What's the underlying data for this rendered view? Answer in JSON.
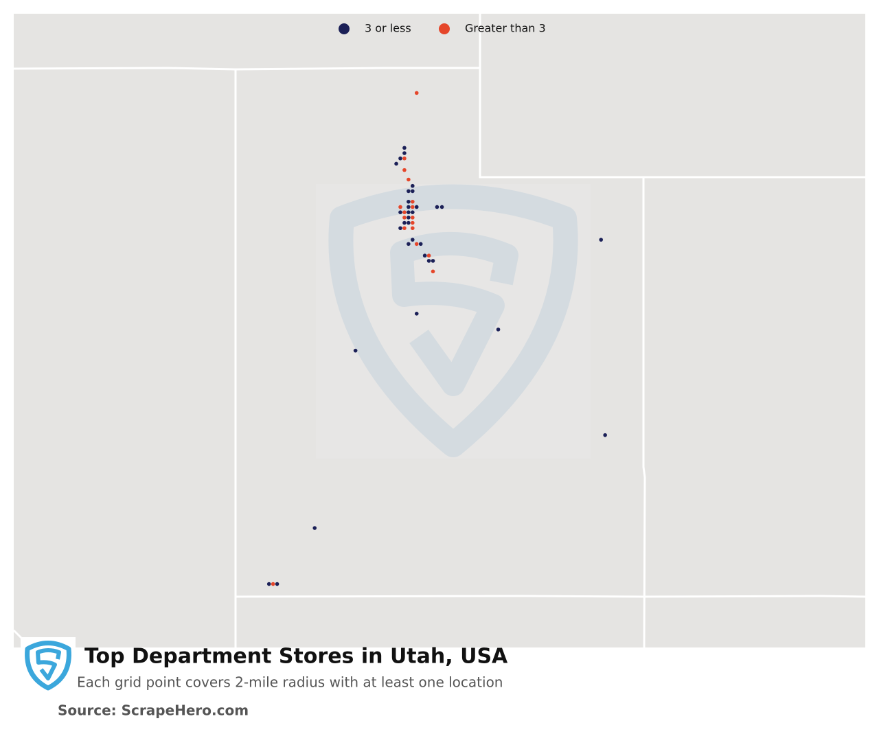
{
  "map": {
    "title": "Top Department Stores in Utah, USA",
    "subtitle": "Each grid point covers 2-mile radius with at least one location",
    "source": "Source: ScrapeHero.com",
    "series": [
      {
        "name": "3 or less",
        "color": "#1b2057",
        "lon": [
          -111.98,
          -111.98,
          -112.03,
          -112.08,
          -111.88,
          -111.93,
          -111.88,
          -111.93,
          -111.93,
          -111.83,
          -112.03,
          -111.93,
          -111.88,
          -111.93,
          -111.98,
          -111.93,
          -112.03,
          -111.88,
          -111.93,
          -111.78,
          -111.73,
          -111.68,
          -111.63,
          -111.58,
          -111.52,
          -109.57,
          -111.83,
          -110.83,
          -112.58,
          -109.52,
          -113.08,
          -113.64,
          -113.54
        ],
        "lat": [
          41.25,
          41.2,
          41.15,
          41.1,
          40.89,
          40.84,
          40.84,
          40.74,
          40.69,
          40.69,
          40.64,
          40.64,
          40.64,
          40.59,
          40.54,
          40.54,
          40.49,
          40.38,
          40.34,
          40.34,
          40.23,
          40.18,
          40.18,
          40.69,
          40.69,
          40.38,
          39.68,
          39.53,
          39.33,
          38.53,
          37.65,
          37.12,
          37.12
        ]
      },
      {
        "name": "Greater than 3",
        "color": "#e5462a",
        "lon": [
          -111.83,
          -111.98,
          -111.98,
          -111.93,
          -111.88,
          -112.03,
          -111.88,
          -111.98,
          -111.98,
          -111.88,
          -111.88,
          -111.98,
          -111.88,
          -111.83,
          -111.68,
          -111.63,
          -113.59
        ],
        "lat": [
          41.77,
          41.15,
          41.04,
          40.95,
          40.74,
          40.69,
          40.69,
          40.64,
          40.59,
          40.59,
          40.54,
          40.49,
          40.49,
          40.34,
          40.23,
          40.08,
          37.12
        ]
      }
    ]
  }
}
